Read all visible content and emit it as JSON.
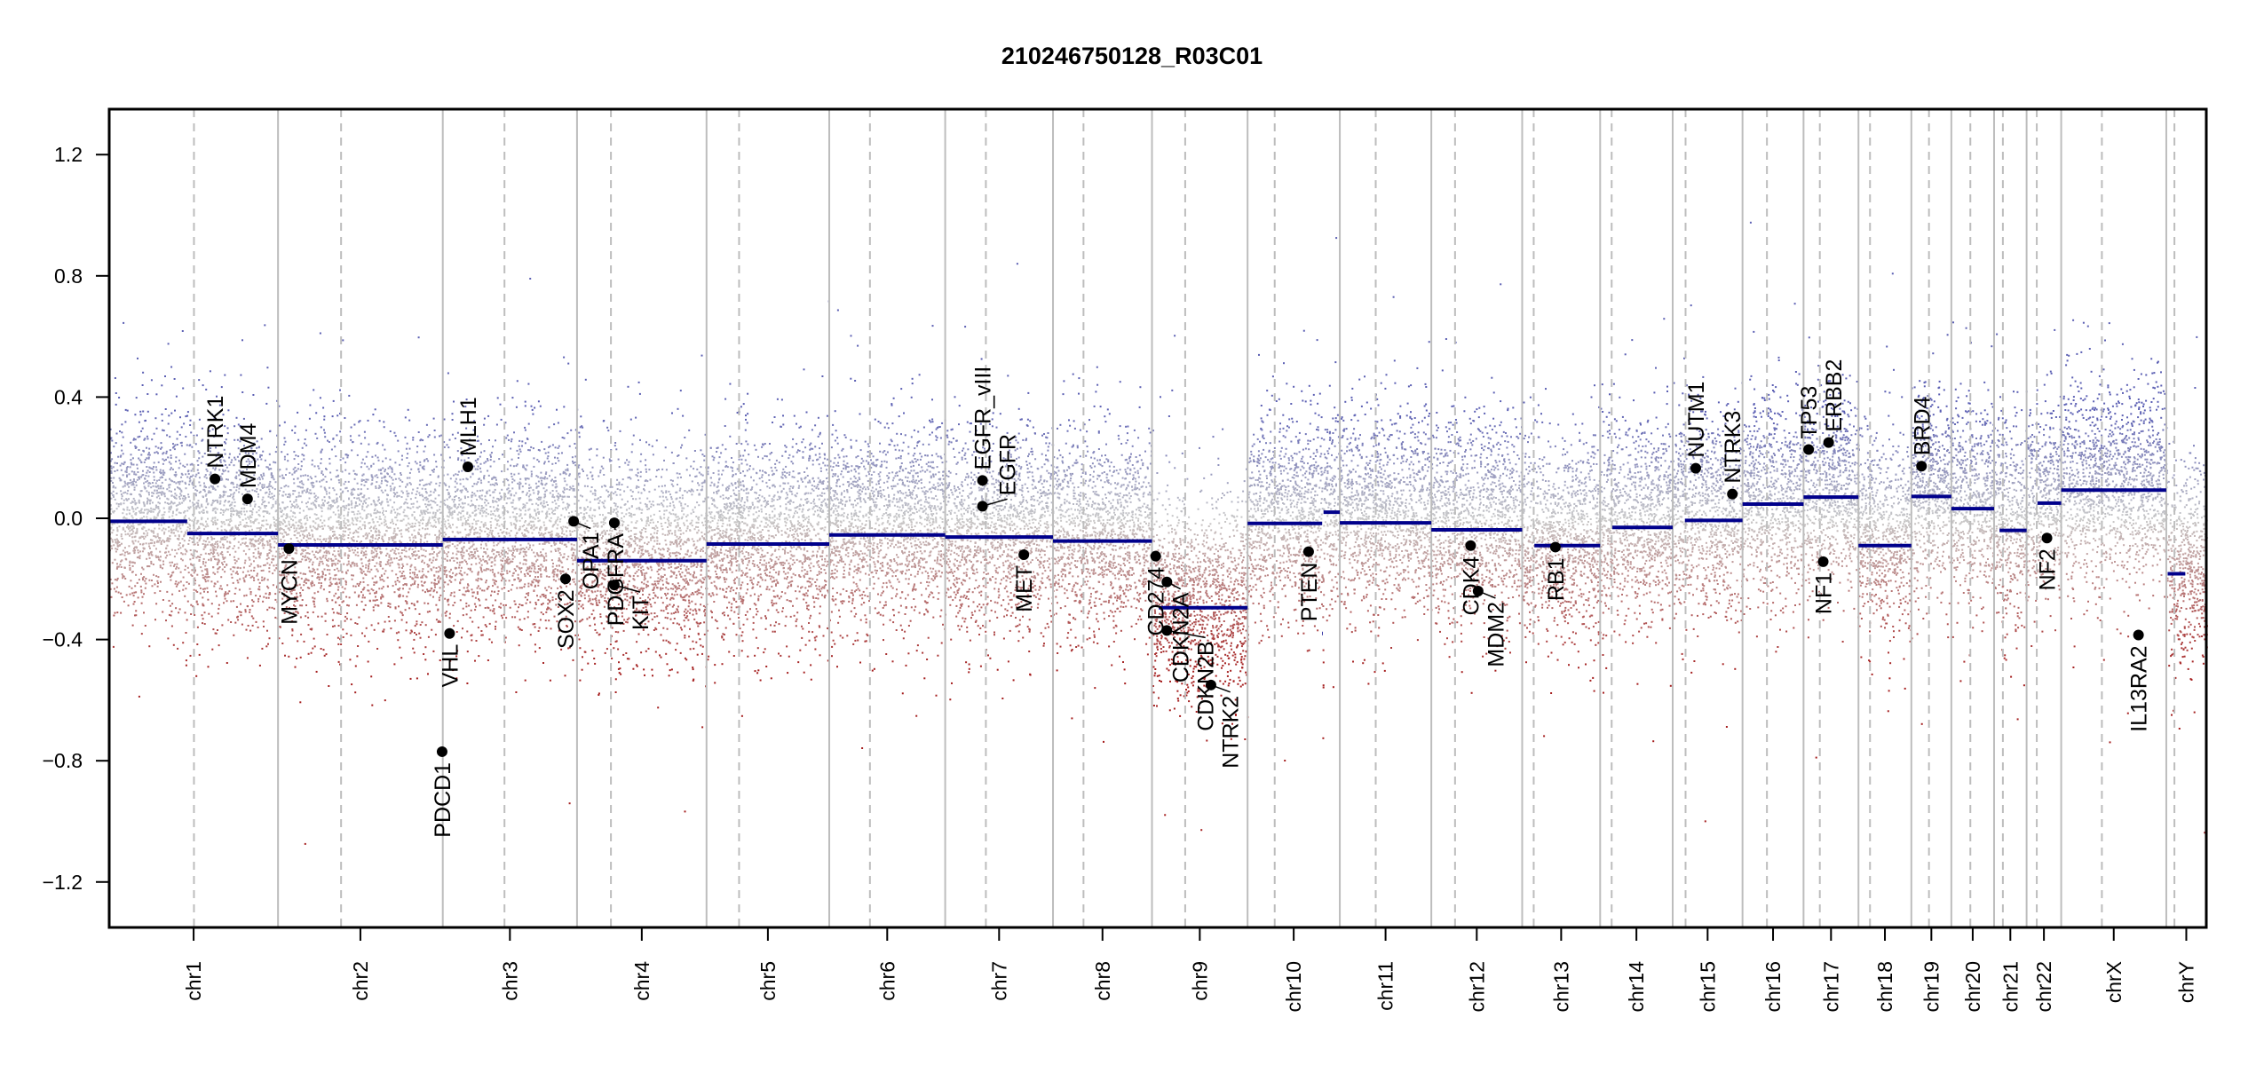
{
  "chart_data": {
    "type": "scatter",
    "title": "210246750128_R03C01",
    "xlabel": "",
    "ylabel": "",
    "ylim": [
      -1.35,
      1.35
    ],
    "y_ticks": [
      "1.2",
      "0.8",
      "0.4",
      "0.0",
      "-0.4",
      "-0.8",
      "-1.2"
    ],
    "y_tick_values": [
      1.2,
      0.8,
      0.4,
      0.0,
      -0.4,
      -0.8,
      -1.2
    ],
    "x_unit": "Mb",
    "chromosomes": [
      {
        "name": "chr1",
        "length": 249,
        "centromere": 125
      },
      {
        "name": "chr2",
        "length": 243,
        "centromere": 93
      },
      {
        "name": "chr3",
        "length": 198,
        "centromere": 91
      },
      {
        "name": "chr4",
        "length": 191,
        "centromere": 50
      },
      {
        "name": "chr5",
        "length": 181,
        "centromere": 48
      },
      {
        "name": "chr6",
        "length": 171,
        "centromere": 60
      },
      {
        "name": "chr7",
        "length": 159,
        "centromere": 60
      },
      {
        "name": "chr8",
        "length": 146,
        "centromere": 45
      },
      {
        "name": "chr9",
        "length": 141,
        "centromere": 49
      },
      {
        "name": "chr10",
        "length": 136,
        "centromere": 40
      },
      {
        "name": "chr11",
        "length": 135,
        "centromere": 53
      },
      {
        "name": "chr12",
        "length": 134,
        "centromere": 35
      },
      {
        "name": "chr13",
        "length": 115,
        "centromere": 17
      },
      {
        "name": "chr14",
        "length": 107,
        "centromere": 17
      },
      {
        "name": "chr15",
        "length": 103,
        "centromere": 19
      },
      {
        "name": "chr16",
        "length": 90,
        "centromere": 36
      },
      {
        "name": "chr17",
        "length": 81,
        "centromere": 24
      },
      {
        "name": "chr18",
        "length": 78,
        "centromere": 17
      },
      {
        "name": "chr19",
        "length": 59,
        "centromere": 26
      },
      {
        "name": "chr20",
        "length": 63,
        "centromere": 28
      },
      {
        "name": "chr21",
        "length": 48,
        "centromere": 13
      },
      {
        "name": "chr22",
        "length": 51,
        "centromere": 15
      },
      {
        "name": "chrX",
        "length": 155,
        "centromere": 60
      },
      {
        "name": "chrY",
        "length": 59,
        "centromere": 12
      }
    ],
    "segments": [
      {
        "chr": "chr1",
        "start": 0,
        "end": 115,
        "value": -0.01
      },
      {
        "chr": "chr1",
        "start": 115,
        "end": 249,
        "value": -0.05
      },
      {
        "chr": "chr2",
        "start": 0,
        "end": 243,
        "value": -0.088
      },
      {
        "chr": "chr3",
        "start": 0,
        "end": 198,
        "value": -0.07
      },
      {
        "chr": "chr4",
        "start": 0,
        "end": 191,
        "value": -0.14
      },
      {
        "chr": "chr5",
        "start": 0,
        "end": 181,
        "value": -0.085
      },
      {
        "chr": "chr6",
        "start": 0,
        "end": 171,
        "value": -0.055
      },
      {
        "chr": "chr7",
        "start": 0,
        "end": 159,
        "value": -0.062
      },
      {
        "chr": "chr8",
        "start": 0,
        "end": 146,
        "value": -0.075
      },
      {
        "chr": "chr9",
        "start": 10,
        "end": 141,
        "value": -0.295
      },
      {
        "chr": "chr10",
        "start": 0,
        "end": 110,
        "value": -0.017
      },
      {
        "chr": "chr10",
        "start": 110,
        "end": 111,
        "value": -0.38
      },
      {
        "chr": "chr10",
        "start": 112,
        "end": 136,
        "value": 0.02
      },
      {
        "chr": "chr11",
        "start": 0,
        "end": 135,
        "value": -0.015
      },
      {
        "chr": "chr12",
        "start": 0,
        "end": 134,
        "value": -0.038
      },
      {
        "chr": "chr13",
        "start": 18,
        "end": 115,
        "value": -0.09
      },
      {
        "chr": "chr14",
        "start": 18,
        "end": 107,
        "value": -0.03
      },
      {
        "chr": "chr15",
        "start": 18,
        "end": 103,
        "value": -0.007
      },
      {
        "chr": "chr16",
        "start": 0,
        "end": 90,
        "value": 0.047
      },
      {
        "chr": "chr17",
        "start": 0,
        "end": 81,
        "value": 0.07
      },
      {
        "chr": "chr18",
        "start": 0,
        "end": 78,
        "value": -0.09
      },
      {
        "chr": "chr19",
        "start": 0,
        "end": 59,
        "value": 0.072
      },
      {
        "chr": "chr20",
        "start": 0,
        "end": 63,
        "value": 0.032
      },
      {
        "chr": "chr21",
        "start": 8,
        "end": 48,
        "value": -0.04
      },
      {
        "chr": "chr22",
        "start": 16,
        "end": 51,
        "value": 0.05
      },
      {
        "chr": "chrX",
        "start": 0,
        "end": 155,
        "value": 0.093
      },
      {
        "chr": "chrY",
        "start": 2,
        "end": 28,
        "value": -0.183
      }
    ],
    "genes": [
      {
        "name": "NTRK1",
        "chr": "chr1",
        "pos": 156,
        "value": 0.13,
        "label_side": "above"
      },
      {
        "name": "MDM4",
        "chr": "chr1",
        "pos": 204,
        "value": 0.064,
        "label_side": "above"
      },
      {
        "name": "MYCN",
        "chr": "chr2",
        "pos": 16,
        "value": -0.1,
        "label_side": "below"
      },
      {
        "name": "PDCD1",
        "chr": "chr2",
        "pos": 242,
        "value": -0.77,
        "label_side": "below"
      },
      {
        "name": "VHL",
        "chr": "chr3",
        "pos": 10,
        "value": -0.38,
        "label_side": "below"
      },
      {
        "name": "MLH1",
        "chr": "chr3",
        "pos": 37,
        "value": 0.17,
        "label_side": "above"
      },
      {
        "name": "SOX2",
        "chr": "chr3",
        "pos": 181,
        "value": -0.2,
        "label_side": "below"
      },
      {
        "name": "OPA1",
        "chr": "chr3",
        "pos": 193,
        "value": -0.01,
        "label_side": "below"
      },
      {
        "name": "KIT",
        "chr": "chr4",
        "pos": 55,
        "value": -0.22,
        "label_side": "below"
      },
      {
        "name": "PDGFRA",
        "chr": "chr4",
        "pos": 55,
        "value": -0.015,
        "label_side": "below"
      },
      {
        "name": "EGFR",
        "chr": "chr7",
        "pos": 55,
        "value": 0.04,
        "label_side": "above"
      },
      {
        "name": "EGFR_vIII",
        "chr": "chr7",
        "pos": 55,
        "value": 0.125,
        "label_side": "above"
      },
      {
        "name": "MET",
        "chr": "chr7",
        "pos": 116,
        "value": -0.12,
        "label_side": "below"
      },
      {
        "name": "CD274",
        "chr": "chr9",
        "pos": 5.5,
        "value": -0.125,
        "label_side": "below"
      },
      {
        "name": "CDKN2A",
        "chr": "chr9",
        "pos": 22,
        "value": -0.21,
        "label_side": "below"
      },
      {
        "name": "CDKN2B",
        "chr": "chr9",
        "pos": 22,
        "value": -0.37,
        "label_side": "below"
      },
      {
        "name": "NTRK2",
        "chr": "chr9",
        "pos": 87,
        "value": -0.55,
        "label_side": "below"
      },
      {
        "name": "PTEN",
        "chr": "chr10",
        "pos": 90,
        "value": -0.11,
        "label_side": "below"
      },
      {
        "name": "CDK4",
        "chr": "chr12",
        "pos": 58,
        "value": -0.09,
        "label_side": "below"
      },
      {
        "name": "MDM2",
        "chr": "chr12",
        "pos": 69,
        "value": -0.24,
        "label_side": "below"
      },
      {
        "name": "RB1",
        "chr": "chr13",
        "pos": 49,
        "value": -0.095,
        "label_side": "below"
      },
      {
        "name": "NUTM1",
        "chr": "chr15",
        "pos": 34,
        "value": 0.165,
        "label_side": "above"
      },
      {
        "name": "NTRK3",
        "chr": "chr15",
        "pos": 88,
        "value": 0.08,
        "label_side": "above"
      },
      {
        "name": "TP53",
        "chr": "chr17",
        "pos": 7.5,
        "value": 0.227,
        "label_side": "above"
      },
      {
        "name": "NF1",
        "chr": "chr17",
        "pos": 29,
        "value": -0.143,
        "label_side": "below"
      },
      {
        "name": "ERBB2",
        "chr": "chr17",
        "pos": 37,
        "value": 0.25,
        "label_side": "above"
      },
      {
        "name": "BRD4",
        "chr": "chr19",
        "pos": 15,
        "value": 0.172,
        "label_side": "above"
      },
      {
        "name": "NF2",
        "chr": "chr22",
        "pos": 30,
        "value": -0.065,
        "label_side": "below"
      },
      {
        "name": "IL13RA2",
        "chr": "chrX",
        "pos": 114,
        "value": -0.385,
        "label_side": "below"
      }
    ],
    "grid": {
      "chromosome_borders": "solid",
      "centromeres": "dashed"
    },
    "legend": "none",
    "colors": {
      "segment": "#00008b",
      "gain_points": "#5b5fb3",
      "neutral_points": "#c8c8c8",
      "loss_points": "#a51e1e",
      "gene_marker": "#000000",
      "chromosome_border": "#bdbdbd",
      "centromere_line": "#bdbdbd"
    }
  }
}
